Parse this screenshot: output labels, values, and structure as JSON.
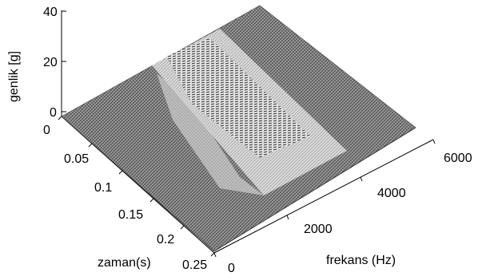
{
  "chart_data": {
    "type": "surface",
    "zlabel": "genlik [g]",
    "ylabel": "zaman(s)",
    "xlabel": "frekans (Hz)",
    "z_ticks": [
      "0",
      "20",
      "40"
    ],
    "y_ticks": [
      "0",
      "0.05",
      "0.1",
      "0.15",
      "0.2",
      "0.25"
    ],
    "x_ticks": [
      "0",
      "2000",
      "4000",
      "6000"
    ],
    "zlim": [
      0,
      40
    ],
    "ylim": [
      0,
      0.25
    ],
    "xlim": [
      0,
      6000
    ],
    "grid": false,
    "colormap": "gray",
    "band": {
      "freq_at_time_start": [
        1900,
        3900
      ],
      "freq_at_time_end": [
        900,
        2500
      ],
      "description_level": "light"
    }
  }
}
